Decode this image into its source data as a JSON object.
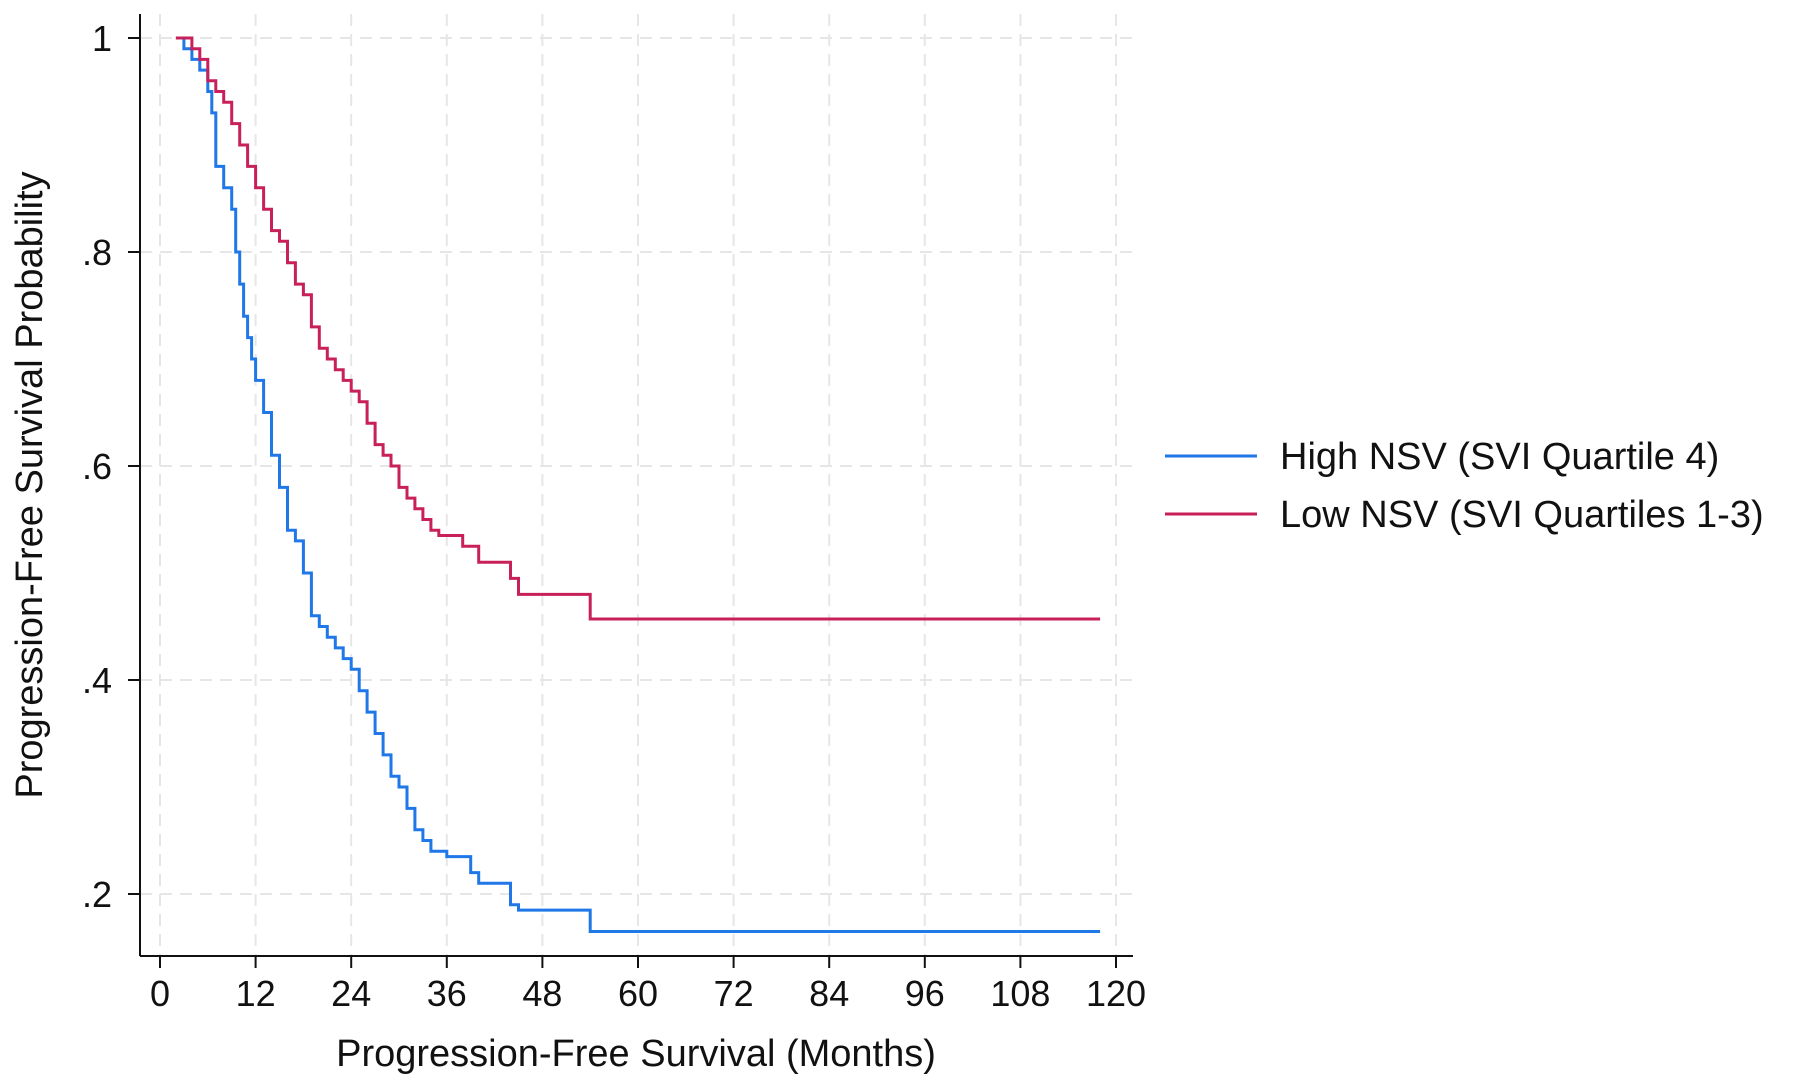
{
  "chart_data": {
    "type": "line",
    "title": "",
    "xlabel": "Progression-Free Survival (Months)",
    "ylabel": "Progression-Free Survival Probability",
    "xlim": [
      0,
      120
    ],
    "ylim": [
      0.16,
      1.0
    ],
    "x_ticks": [
      0,
      12,
      24,
      36,
      48,
      60,
      72,
      84,
      96,
      108,
      120
    ],
    "x_tick_labels": [
      "0",
      "12",
      "24",
      "36",
      "48",
      "60",
      "72",
      "84",
      "96",
      "108",
      "120"
    ],
    "y_ticks": [
      1,
      0.8,
      0.6,
      0.4,
      0.2
    ],
    "y_tick_labels": [
      "1",
      ".8",
      ".6",
      ".4",
      ".2"
    ],
    "grid": true,
    "legend_position": "right",
    "series": [
      {
        "name": "High NSV (SVI Quartile 4)",
        "color": "#1f77e8",
        "step": true,
        "x": [
          2,
          3,
          4,
          5,
          6,
          6.5,
          7,
          8,
          9,
          9.5,
          10,
          10.5,
          11,
          11.5,
          12,
          13,
          14,
          15,
          16,
          17,
          18,
          19,
          20,
          21,
          22,
          23,
          24,
          25,
          26,
          27,
          28,
          29,
          30,
          31,
          32,
          33,
          34,
          36,
          39,
          40,
          44,
          45,
          54,
          118
        ],
        "y": [
          1.0,
          0.99,
          0.98,
          0.97,
          0.95,
          0.93,
          0.88,
          0.86,
          0.84,
          0.8,
          0.77,
          0.74,
          0.72,
          0.7,
          0.68,
          0.65,
          0.61,
          0.58,
          0.54,
          0.53,
          0.5,
          0.46,
          0.45,
          0.44,
          0.43,
          0.42,
          0.41,
          0.39,
          0.37,
          0.35,
          0.33,
          0.31,
          0.3,
          0.28,
          0.26,
          0.25,
          0.24,
          0.235,
          0.22,
          0.21,
          0.19,
          0.185,
          0.165,
          0.165
        ]
      },
      {
        "name": "Low NSV (SVI Quartiles 1-3)",
        "color": "#c8205a",
        "step": true,
        "x": [
          2,
          4,
          5,
          6,
          7,
          8,
          9,
          10,
          11,
          12,
          13,
          14,
          15,
          16,
          17,
          18,
          19,
          20,
          21,
          22,
          23,
          24,
          25,
          26,
          27,
          28,
          29,
          30,
          31,
          32,
          33,
          34,
          35,
          36,
          38,
          40,
          41,
          44,
          45,
          54,
          118
        ],
        "y": [
          1.0,
          0.99,
          0.98,
          0.96,
          0.95,
          0.94,
          0.92,
          0.9,
          0.88,
          0.86,
          0.84,
          0.82,
          0.81,
          0.79,
          0.77,
          0.76,
          0.73,
          0.71,
          0.7,
          0.69,
          0.68,
          0.67,
          0.66,
          0.64,
          0.62,
          0.61,
          0.6,
          0.58,
          0.57,
          0.56,
          0.55,
          0.54,
          0.535,
          0.535,
          0.525,
          0.51,
          0.51,
          0.495,
          0.48,
          0.457,
          0.457
        ]
      }
    ]
  }
}
